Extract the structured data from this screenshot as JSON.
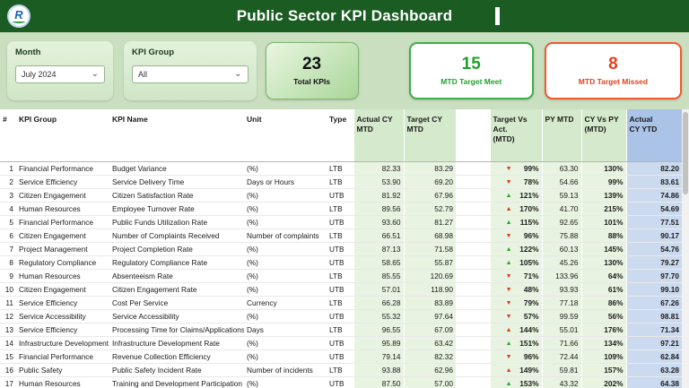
{
  "header": {
    "title": "Public Sector KPI Dashboard",
    "logo_text": "R"
  },
  "filters": {
    "month": {
      "label": "Month",
      "value": "July 2024"
    },
    "kpi_group": {
      "label": "KPI Group",
      "value": "All"
    }
  },
  "cards": [
    {
      "value": "23",
      "label": "Total KPIs"
    },
    {
      "value": "15",
      "label": "MTD Target Meet"
    },
    {
      "value": "8",
      "label": "MTD Target Missed"
    }
  ],
  "table": {
    "columns": [
      "#",
      "KPI Group",
      "KPI Name",
      "Unit",
      "Type",
      "Actual CY\nMTD",
      "Target CY\nMTD",
      "Target Vs\nAct.\n(MTD)",
      "PY MTD",
      "CY Vs PY\n(MTD)",
      "Actual\nCY YTD"
    ],
    "rows": [
      {
        "num": "1",
        "group": "Financial Performance",
        "name": "Budget Variance",
        "unit": "(%)",
        "type": "LTB",
        "actual": "82.33",
        "target": "83.29",
        "trend": "down",
        "status": "bad",
        "tva": "99%",
        "py": "63.30",
        "cyvspy": "130%",
        "ytd": "82.20"
      },
      {
        "num": "2",
        "group": "Service Efficiency",
        "name": "Service Delivery Time",
        "unit": "Days or Hours",
        "type": "LTB",
        "actual": "53.90",
        "target": "69.20",
        "trend": "down",
        "status": "bad",
        "tva": "78%",
        "py": "54.66",
        "cyvspy": "99%",
        "ytd": "83.61"
      },
      {
        "num": "3",
        "group": "Citizen Engagement",
        "name": "Citizen Satisfaction Rate",
        "unit": "(%)",
        "type": "UTB",
        "actual": "81.92",
        "target": "67.96",
        "trend": "up",
        "status": "good",
        "tva": "121%",
        "py": "59.13",
        "cyvspy": "139%",
        "ytd": "74.86"
      },
      {
        "num": "4",
        "group": "Human Resources",
        "name": "Employee Turnover Rate",
        "unit": "(%)",
        "type": "LTB",
        "actual": "89.56",
        "target": "52.79",
        "trend": "up",
        "status": "bad",
        "tva": "170%",
        "py": "41.70",
        "cyvspy": "215%",
        "ytd": "54.69"
      },
      {
        "num": "5",
        "group": "Financial Performance",
        "name": "Public Funds Utilization Rate",
        "unit": "(%)",
        "type": "UTB",
        "actual": "93.60",
        "target": "81.27",
        "trend": "up",
        "status": "good",
        "tva": "115%",
        "py": "92.65",
        "cyvspy": "101%",
        "ytd": "77.51"
      },
      {
        "num": "6",
        "group": "Citizen Engagement",
        "name": "Number of Complaints Received",
        "unit": "Number of complaints",
        "type": "LTB",
        "actual": "66.51",
        "target": "68.98",
        "trend": "down",
        "status": "bad",
        "tva": "96%",
        "py": "75.88",
        "cyvspy": "88%",
        "ytd": "90.17"
      },
      {
        "num": "7",
        "group": "Project Management",
        "name": "Project Completion Rate",
        "unit": "(%)",
        "type": "UTB",
        "actual": "87.13",
        "target": "71.58",
        "trend": "up",
        "status": "good",
        "tva": "122%",
        "py": "60.13",
        "cyvspy": "145%",
        "ytd": "54.76"
      },
      {
        "num": "8",
        "group": "Regulatory Compliance",
        "name": "Regulatory Compliance Rate",
        "unit": "(%)",
        "type": "UTB",
        "actual": "58.65",
        "target": "55.87",
        "trend": "up",
        "status": "good",
        "tva": "105%",
        "py": "45.26",
        "cyvspy": "130%",
        "ytd": "79.27"
      },
      {
        "num": "9",
        "group": "Human Resources",
        "name": "Absenteeism Rate",
        "unit": "(%)",
        "type": "LTB",
        "actual": "85.55",
        "target": "120.69",
        "trend": "down",
        "status": "bad",
        "tva": "71%",
        "py": "133.96",
        "cyvspy": "64%",
        "ytd": "97.70"
      },
      {
        "num": "10",
        "group": "Citizen Engagement",
        "name": "Citizen Engagement Rate",
        "unit": "(%)",
        "type": "UTB",
        "actual": "57.01",
        "target": "118.90",
        "trend": "down",
        "status": "bad",
        "tva": "48%",
        "py": "93.93",
        "cyvspy": "61%",
        "ytd": "99.10"
      },
      {
        "num": "11",
        "group": "Service Efficiency",
        "name": "Cost Per Service",
        "unit": "Currency",
        "type": "LTB",
        "actual": "66.28",
        "target": "83.89",
        "trend": "down",
        "status": "bad",
        "tva": "79%",
        "py": "77.18",
        "cyvspy": "86%",
        "ytd": "67.26"
      },
      {
        "num": "12",
        "group": "Service Accessibility",
        "name": "Service Accessibility",
        "unit": "(%)",
        "type": "UTB",
        "actual": "55.32",
        "target": "97.64",
        "trend": "down",
        "status": "bad",
        "tva": "57%",
        "py": "99.59",
        "cyvspy": "56%",
        "ytd": "98.81"
      },
      {
        "num": "13",
        "group": "Service Efficiency",
        "name": "Processing Time for Claims/Applications",
        "unit": "Days",
        "type": "LTB",
        "actual": "96.55",
        "target": "67.09",
        "trend": "up",
        "status": "bad",
        "tva": "144%",
        "py": "55.01",
        "cyvspy": "176%",
        "ytd": "71.34"
      },
      {
        "num": "14",
        "group": "Infrastructure Development",
        "name": "Infrastructure Development Rate",
        "unit": "(%)",
        "type": "UTB",
        "actual": "95.89",
        "target": "63.42",
        "trend": "up",
        "status": "good",
        "tva": "151%",
        "py": "71.66",
        "cyvspy": "134%",
        "ytd": "97.21"
      },
      {
        "num": "15",
        "group": "Financial Performance",
        "name": "Revenue Collection Efficiency",
        "unit": "(%)",
        "type": "UTB",
        "actual": "79.14",
        "target": "82.32",
        "trend": "down",
        "status": "bad",
        "tva": "96%",
        "py": "72.44",
        "cyvspy": "109%",
        "ytd": "62.84"
      },
      {
        "num": "16",
        "group": "Public Safety",
        "name": "Public Safety Incident Rate",
        "unit": "Number of incidents",
        "type": "LTB",
        "actual": "93.88",
        "target": "62.96",
        "trend": "up",
        "status": "bad",
        "tva": "149%",
        "py": "59.81",
        "cyvspy": "157%",
        "ytd": "63.28"
      },
      {
        "num": "17",
        "group": "Human Resources",
        "name": "Training and Development Participation",
        "unit": "(%)",
        "type": "UTB",
        "actual": "87.50",
        "target": "57.00",
        "trend": "up",
        "status": "good",
        "tva": "153%",
        "py": "43.32",
        "cyvspy": "202%",
        "ytd": "64.38"
      }
    ]
  }
}
